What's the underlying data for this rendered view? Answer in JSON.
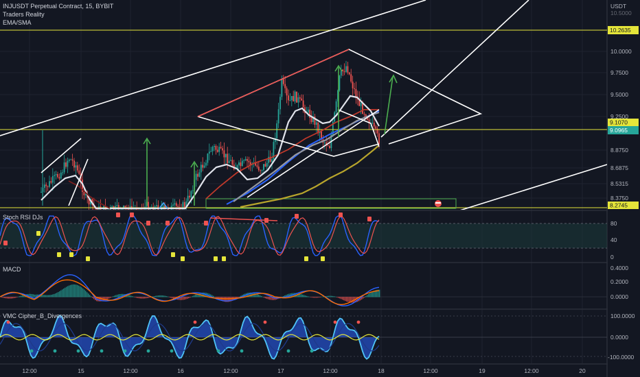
{
  "header": {
    "symbol_line": "INJUSDT Perpetual Contract, 15, BYBIT",
    "indicator_1": "Traders Reality",
    "indicator_2": "EMA/SMA"
  },
  "price_axis": {
    "currency": "USDT",
    "top_partial": "10.5000",
    "ticks": [
      "10.0000",
      "9.7500",
      "9.5000",
      "9.2500",
      "8.8750",
      "8.6875",
      "8.5315",
      "8.3750"
    ],
    "tags": [
      {
        "text": "10.2635",
        "style": "yellow"
      },
      {
        "text": "9.1070",
        "style": "yellow"
      },
      {
        "text": "9.0965",
        "style": "green"
      },
      {
        "text": "8.2745",
        "style": "yellow"
      }
    ]
  },
  "stoch_rsi": {
    "title": "Stoch RSI DJs",
    "ticks": [
      "80",
      "40",
      "0"
    ]
  },
  "macd": {
    "title": "MACD",
    "ticks": [
      "0.4000",
      "0.2000",
      "0.0000"
    ]
  },
  "vmc": {
    "title": "VMC Cipher_B_Divergences",
    "ticks": [
      "100.0000",
      "0.0000",
      "-100.0000"
    ]
  },
  "time_axis": [
    "12:00",
    "15",
    "12:00",
    "16",
    "12:00",
    "17",
    "12:00",
    "18",
    "12:00",
    "19",
    "12:00",
    "20"
  ],
  "colors": {
    "background": "#131722",
    "up": "#26a69a",
    "down": "#ef5350",
    "yellow_line": "#e5e53a",
    "trend_white": "#ffffff",
    "ema_red": "#c0392b",
    "ema_blue": "#2962ff",
    "sma_gold": "#b8a52c"
  }
}
